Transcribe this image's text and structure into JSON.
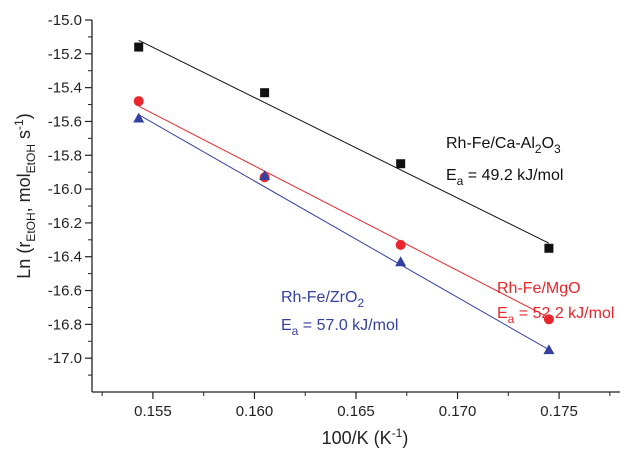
{
  "chart_data": {
    "type": "scatter",
    "xlabel": "100/K (K⁻¹)",
    "ylabel": "Ln (r_EtOH, mol_EtOH s⁻¹)",
    "xlim": [
      0.152,
      0.178
    ],
    "ylim": [
      -17.2,
      -15.0
    ],
    "xticks": [
      0.155,
      0.16,
      0.165,
      0.17,
      0.175
    ],
    "xtick_labels": [
      "0.155",
      "0.160",
      "0.165",
      "0.170",
      "0.175"
    ],
    "yticks": [
      -15.0,
      -15.2,
      -15.4,
      -15.6,
      -15.8,
      -16.0,
      -16.2,
      -16.4,
      -16.6,
      -16.8,
      -17.0
    ],
    "ytick_labels": [
      "-15.0",
      "-15.2",
      "-15.4",
      "-15.6",
      "-15.8",
      "-16.0",
      "-16.2",
      "-16.4",
      "-16.6",
      "-16.8",
      "-17.0"
    ],
    "grid": false,
    "series": [
      {
        "name": "Rh-Fe/Ca-Al2O3",
        "color": "#111111",
        "marker": "square",
        "x": [
          0.1543,
          0.1605,
          0.1672,
          0.1745
        ],
        "y": [
          -15.16,
          -15.43,
          -15.85,
          -16.35
        ],
        "fit": {
          "x": [
            0.1543,
            0.1745
          ],
          "y": [
            -15.12,
            -16.32
          ]
        },
        "labels": {
          "name_text": "Rh-Fe/Ca-Al",
          "name_sub": "2",
          "name_tail": "O",
          "name_sub2": "3",
          "ea_prefix": "E",
          "ea_sub": "a",
          "ea_value": " = 49.2 kJ/mol"
        }
      },
      {
        "name": "Rh-Fe/MgO",
        "color": "#e8262b",
        "marker": "circle",
        "x": [
          0.1543,
          0.1605,
          0.1672,
          0.1745
        ],
        "y": [
          -15.48,
          -15.93,
          -16.33,
          -16.77
        ],
        "fit": {
          "x": [
            0.1543,
            0.1745
          ],
          "y": [
            -15.51,
            -16.76
          ]
        },
        "labels": {
          "name_text": "Rh-Fe/MgO",
          "name_sub": "",
          "name_tail": "",
          "name_sub2": "",
          "ea_prefix": "E",
          "ea_sub": "a",
          "ea_value": " = 52.2 kJ/mol"
        }
      },
      {
        "name": "Rh-Fe/ZrO2",
        "color": "#3340a0",
        "marker": "triangle",
        "x": [
          0.1543,
          0.1605,
          0.1672,
          0.1745
        ],
        "y": [
          -15.58,
          -15.92,
          -16.43,
          -16.95
        ],
        "fit": {
          "x": [
            0.1543,
            0.1745
          ],
          "y": [
            -15.56,
            -16.95
          ]
        },
        "labels": {
          "name_text": "Rh-Fe/ZrO",
          "name_sub": "2",
          "name_tail": "",
          "name_sub2": "",
          "ea_prefix": "E",
          "ea_sub": "a",
          "ea_value": " = 57.0 kJ/mol"
        }
      }
    ]
  }
}
